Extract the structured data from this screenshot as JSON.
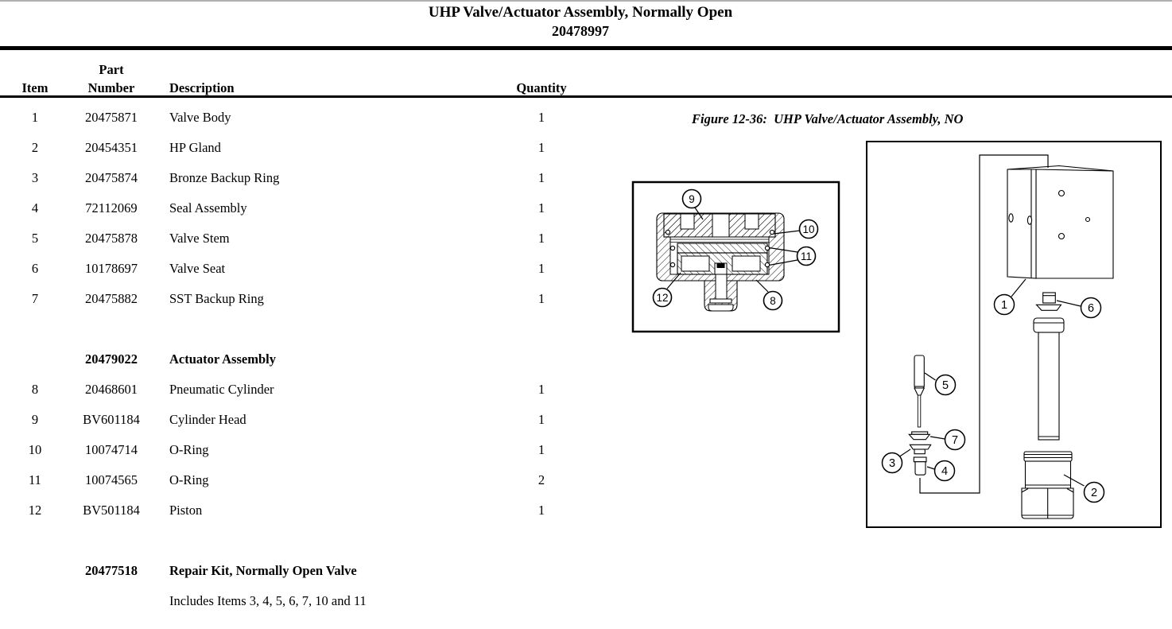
{
  "header": {
    "title": "UHP Valve/Actuator Assembly, Normally Open",
    "part_number": "20478997"
  },
  "table": {
    "headers": {
      "item": "Item",
      "part_line1": "Part",
      "part_line2": "Number",
      "description": "Description",
      "quantity": "Quantity"
    },
    "sections": [
      {
        "rows": [
          {
            "item": "1",
            "part": "20475871",
            "desc": "Valve Body",
            "qty": "1"
          },
          {
            "item": "2",
            "part": "20454351",
            "desc": "HP Gland",
            "qty": "1"
          },
          {
            "item": "3",
            "part": "20475874",
            "desc": "Bronze Backup Ring",
            "qty": "1"
          },
          {
            "item": "4",
            "part": "72112069",
            "desc": "Seal Assembly",
            "qty": "1"
          },
          {
            "item": "5",
            "part": "20475878",
            "desc": "Valve Stem",
            "qty": "1"
          },
          {
            "item": "6",
            "part": "10178697",
            "desc": "Valve Seat",
            "qty": "1"
          },
          {
            "item": "7",
            "part": "20475882",
            "desc": "SST Backup Ring",
            "qty": "1"
          }
        ]
      },
      {
        "title_part": "20479022",
        "title_desc": "Actuator Assembly",
        "rows": [
          {
            "item": "8",
            "part": "20468601",
            "desc": "Pneumatic Cylinder",
            "qty": "1"
          },
          {
            "item": "9",
            "part": "BV601184",
            "desc": "Cylinder Head",
            "qty": "1"
          },
          {
            "item": "10",
            "part": "10074714",
            "desc": "O-Ring",
            "qty": "1"
          },
          {
            "item": "11",
            "part": "10074565",
            "desc": "O-Ring",
            "qty": "2"
          },
          {
            "item": "12",
            "part": "BV501184",
            "desc": "Piston",
            "qty": "1"
          }
        ]
      },
      {
        "title_part": "20477518",
        "title_desc": "Repair Kit, Normally Open Valve",
        "note": "Includes Items 3, 4, 5, 6, 7, 10 and 11",
        "rows": []
      }
    ]
  },
  "figure": {
    "caption": "Figure 12-36:  UHP Valve/Actuator Assembly, NO",
    "cross_section": {
      "callouts": [
        "9",
        "10",
        "11",
        "12",
        "8"
      ]
    },
    "exploded": {
      "callouts": [
        "1",
        "6",
        "5",
        "7",
        "3",
        "4",
        "2"
      ]
    }
  }
}
